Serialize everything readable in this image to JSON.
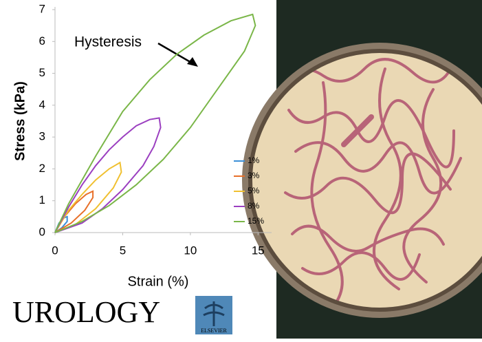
{
  "chart_data": {
    "type": "line",
    "xlabel": "Strain (%)",
    "ylabel": "Stress (kPa)",
    "annotation": "Hysteresis",
    "xlim": [
      0,
      16
    ],
    "ylim": [
      0,
      7
    ],
    "xticks": [
      0,
      5,
      10,
      15
    ],
    "yticks": [
      0,
      1,
      2,
      3,
      4,
      5,
      6,
      7
    ],
    "legend": "lower right",
    "series": [
      {
        "name": "1%",
        "color": "#3a8fd8",
        "x": [
          0,
          0.3,
          0.7,
          0.9,
          0.9,
          0.5,
          0
        ],
        "values": [
          0,
          0.3,
          0.47,
          0.5,
          0.35,
          0.15,
          0
        ]
      },
      {
        "name": "3%",
        "color": "#e8702a",
        "x": [
          0,
          0.7,
          1.5,
          2.3,
          2.8,
          2.8,
          2.2,
          1.2,
          0
        ],
        "values": [
          0,
          0.5,
          0.9,
          1.2,
          1.3,
          1.1,
          0.7,
          0.3,
          0
        ]
      },
      {
        "name": "5%",
        "color": "#f0c030",
        "x": [
          0,
          1,
          2,
          3,
          4,
          4.8,
          4.9,
          4.3,
          3,
          1.5,
          0
        ],
        "values": [
          0,
          0.7,
          1.2,
          1.65,
          2.0,
          2.2,
          1.9,
          1.4,
          0.75,
          0.25,
          0
        ]
      },
      {
        "name": "8%",
        "color": "#9b3fc0",
        "x": [
          0,
          1,
          2,
          3,
          4,
          5,
          6,
          7,
          7.7,
          7.8,
          7.3,
          6.5,
          5,
          3.5,
          2,
          0
        ],
        "values": [
          0,
          0.8,
          1.5,
          2.1,
          2.6,
          3.0,
          3.35,
          3.55,
          3.6,
          3.3,
          2.7,
          2.1,
          1.35,
          0.75,
          0.3,
          0
        ]
      },
      {
        "name": "15%",
        "color": "#7ab648",
        "x": [
          0,
          1,
          3,
          5,
          7,
          9,
          11,
          13,
          14.6,
          14.8,
          14,
          12,
          10,
          8,
          6,
          4,
          2,
          0
        ],
        "values": [
          0,
          0.9,
          2.4,
          3.8,
          4.8,
          5.6,
          6.2,
          6.65,
          6.85,
          6.5,
          5.7,
          4.5,
          3.3,
          2.3,
          1.5,
          0.85,
          0.35,
          0
        ]
      }
    ]
  },
  "logo": {
    "journal": "UROLOGY",
    "publisher": "ELSEVIER"
  }
}
